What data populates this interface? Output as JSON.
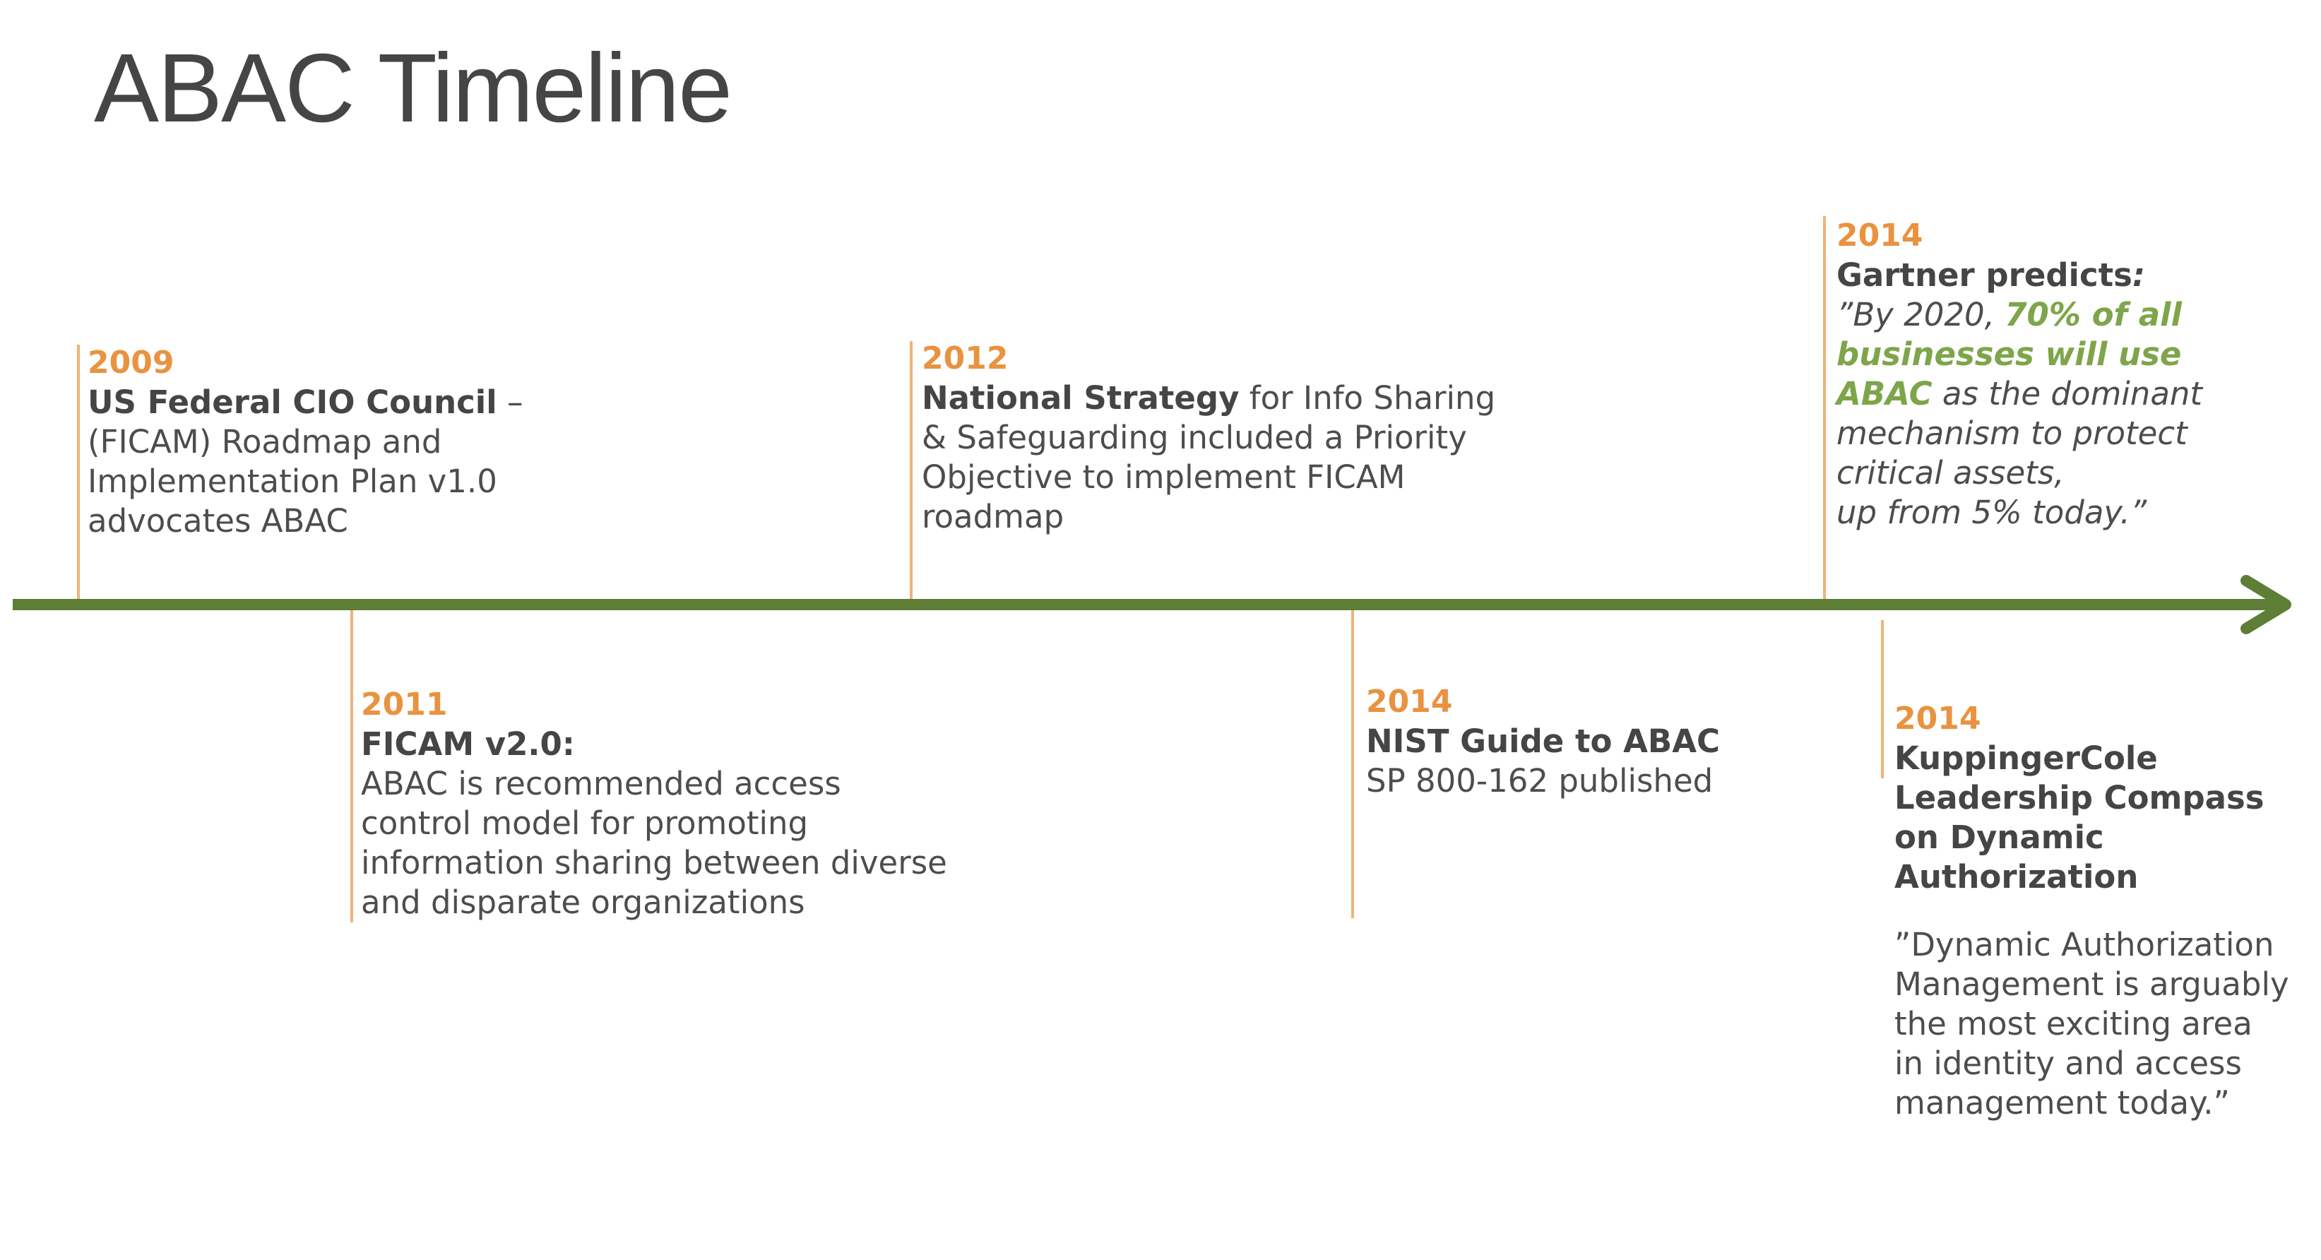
{
  "title": "ABAC Timeline",
  "colors": {
    "axis": "#5e7e36",
    "tick": "#f0b27a",
    "year": "#e9923f",
    "highlight": "#7ea54a",
    "text": "#4d4d4d"
  },
  "events": [
    {
      "year": "2009",
      "position": "above",
      "heading": "US Federal CIO Council",
      "heading_suffix": " –",
      "lines": [
        "(FICAM) Roadmap and",
        "Implementation Plan v1.0",
        "advocates ABAC"
      ]
    },
    {
      "year": "2011",
      "position": "below",
      "heading": "FICAM v2.0:",
      "lines": [
        "ABAC is recommended access",
        "control model for promoting",
        "information sharing between diverse",
        "and disparate organizations"
      ]
    },
    {
      "year": "2012",
      "position": "above",
      "heading": "National Strategy",
      "heading_suffix": " for Info Sharing",
      "lines": [
        "& Safeguarding included a Priority",
        "Objective to implement FICAM",
        "roadmap"
      ]
    },
    {
      "year": "2014",
      "position": "below",
      "heading": "NIST Guide to ABAC",
      "lines": [
        "SP 800-162 published"
      ]
    },
    {
      "year": "2014",
      "position": "above",
      "heading": "Gartner predicts",
      "heading_suffix": ":",
      "quote": {
        "l1_pre": "”By 2020, ",
        "l1_emph": "70% of all",
        "l2_emph": "businesses will use",
        "l3_emph": "ABAC",
        "l3_post": " as the dominant",
        "l4": "mechanism to protect",
        "l5": "critical assets,",
        "l6": "up from 5% today.”"
      }
    },
    {
      "year": "2014",
      "position": "below",
      "heading_lines": [
        "KuppingerCole",
        "Leadership Compass",
        "on Dynamic",
        "Authorization"
      ],
      "quote_lines": [
        "”Dynamic Authorization",
        "Management is arguably",
        "the most exciting area",
        "in identity and access",
        "management today.”"
      ]
    }
  ]
}
